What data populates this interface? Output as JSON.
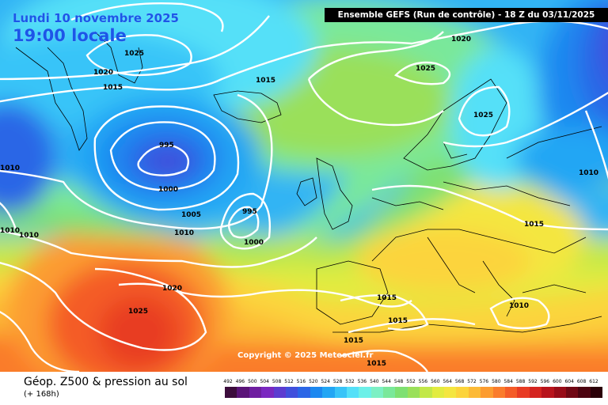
{
  "header": "Ensemble GEFS  (Run de contrôle)  -  18 Z du 03/11/2025",
  "date_label": "Lundi 10 novembre 2025",
  "local_time": "19:00 locale",
  "copyright": "Copyright © 2025 Meteociel.fr",
  "legend": {
    "title": "Géop. Z500 & pression au sol",
    "subtitle": "(+ 168h)",
    "ticks": [
      "492",
      "496",
      "500",
      "504",
      "508",
      "512",
      "516",
      "520",
      "524",
      "528",
      "532",
      "536",
      "540",
      "544",
      "548",
      "552",
      "556",
      "560",
      "564",
      "568",
      "572",
      "576",
      "580",
      "584",
      "588",
      "592",
      "596",
      "600",
      "604",
      "608",
      "612"
    ],
    "colors": [
      "#3c0d3c",
      "#5a1478",
      "#6e1ea0",
      "#7a28c0",
      "#5c3cd0",
      "#4050dc",
      "#2b66e6",
      "#1c88f0",
      "#22a6f4",
      "#38c4f8",
      "#54e0f8",
      "#6cf0e8",
      "#7cf0c4",
      "#7ae89a",
      "#7ee072",
      "#9ae05a",
      "#c2e848",
      "#e2ec40",
      "#f4e640",
      "#fcd43c",
      "#fcba36",
      "#fc9c30",
      "#fa7c2c",
      "#f45c28",
      "#e83c24",
      "#d42420",
      "#b8141c",
      "#980c18",
      "#700814",
      "#4c0410",
      "#2a0008"
    ]
  },
  "pressure_labels": [
    "1025",
    "1020",
    "1015",
    "1015",
    "1020",
    "1025",
    "1025",
    "995",
    "1000",
    "1010",
    "1005",
    "1010",
    "995",
    "1000",
    "1010",
    "1010",
    "1020",
    "1025",
    "1015",
    "1015",
    "1015",
    "1010",
    "1015"
  ]
}
